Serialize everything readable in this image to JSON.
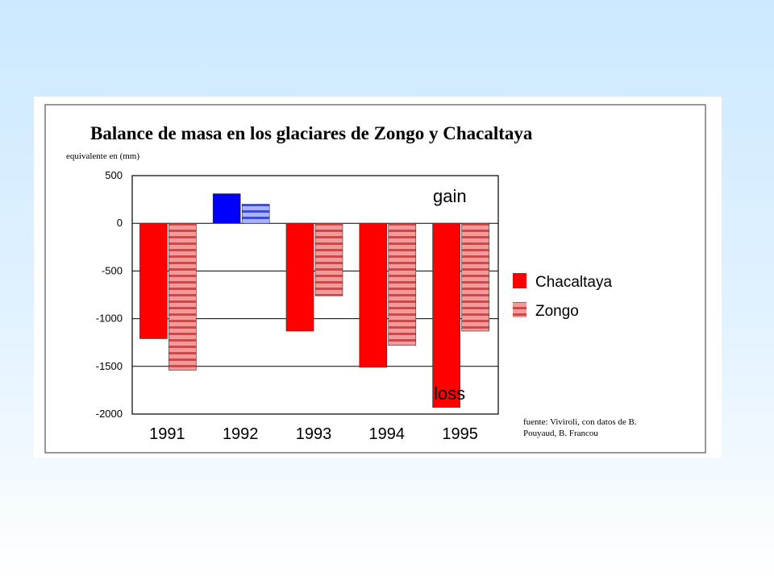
{
  "chart_data": {
    "type": "bar",
    "title": "Balance de masa en los glaciares de Zongo y Chacaltaya",
    "ylabel": "equivalente en (mm)",
    "categories": [
      "1991",
      "1992",
      "1993",
      "1994",
      "1995"
    ],
    "yticks": [
      "500",
      "0",
      "-500",
      "-1000",
      "-1500",
      "-2000"
    ],
    "ylim": [
      -2000,
      500
    ],
    "series": [
      {
        "name": "Chacaltaya",
        "values": [
          -1210,
          310,
          -1130,
          -1510,
          -1930
        ],
        "color": "#ff0000",
        "color_positive": "#0000ff",
        "pattern": "solid"
      },
      {
        "name": "Zongo",
        "values": [
          -1540,
          200,
          -760,
          -1280,
          -1130
        ],
        "color": "#ef7272",
        "color_positive": "#7f8fff",
        "pattern": "striped"
      }
    ],
    "annotations": {
      "gain": "gain",
      "loss": "loss"
    },
    "source": [
      "fuente: Viviroli, con datos de B.",
      "Pouyaud, B. Francou"
    ],
    "grid": true,
    "legend_position": "right"
  }
}
